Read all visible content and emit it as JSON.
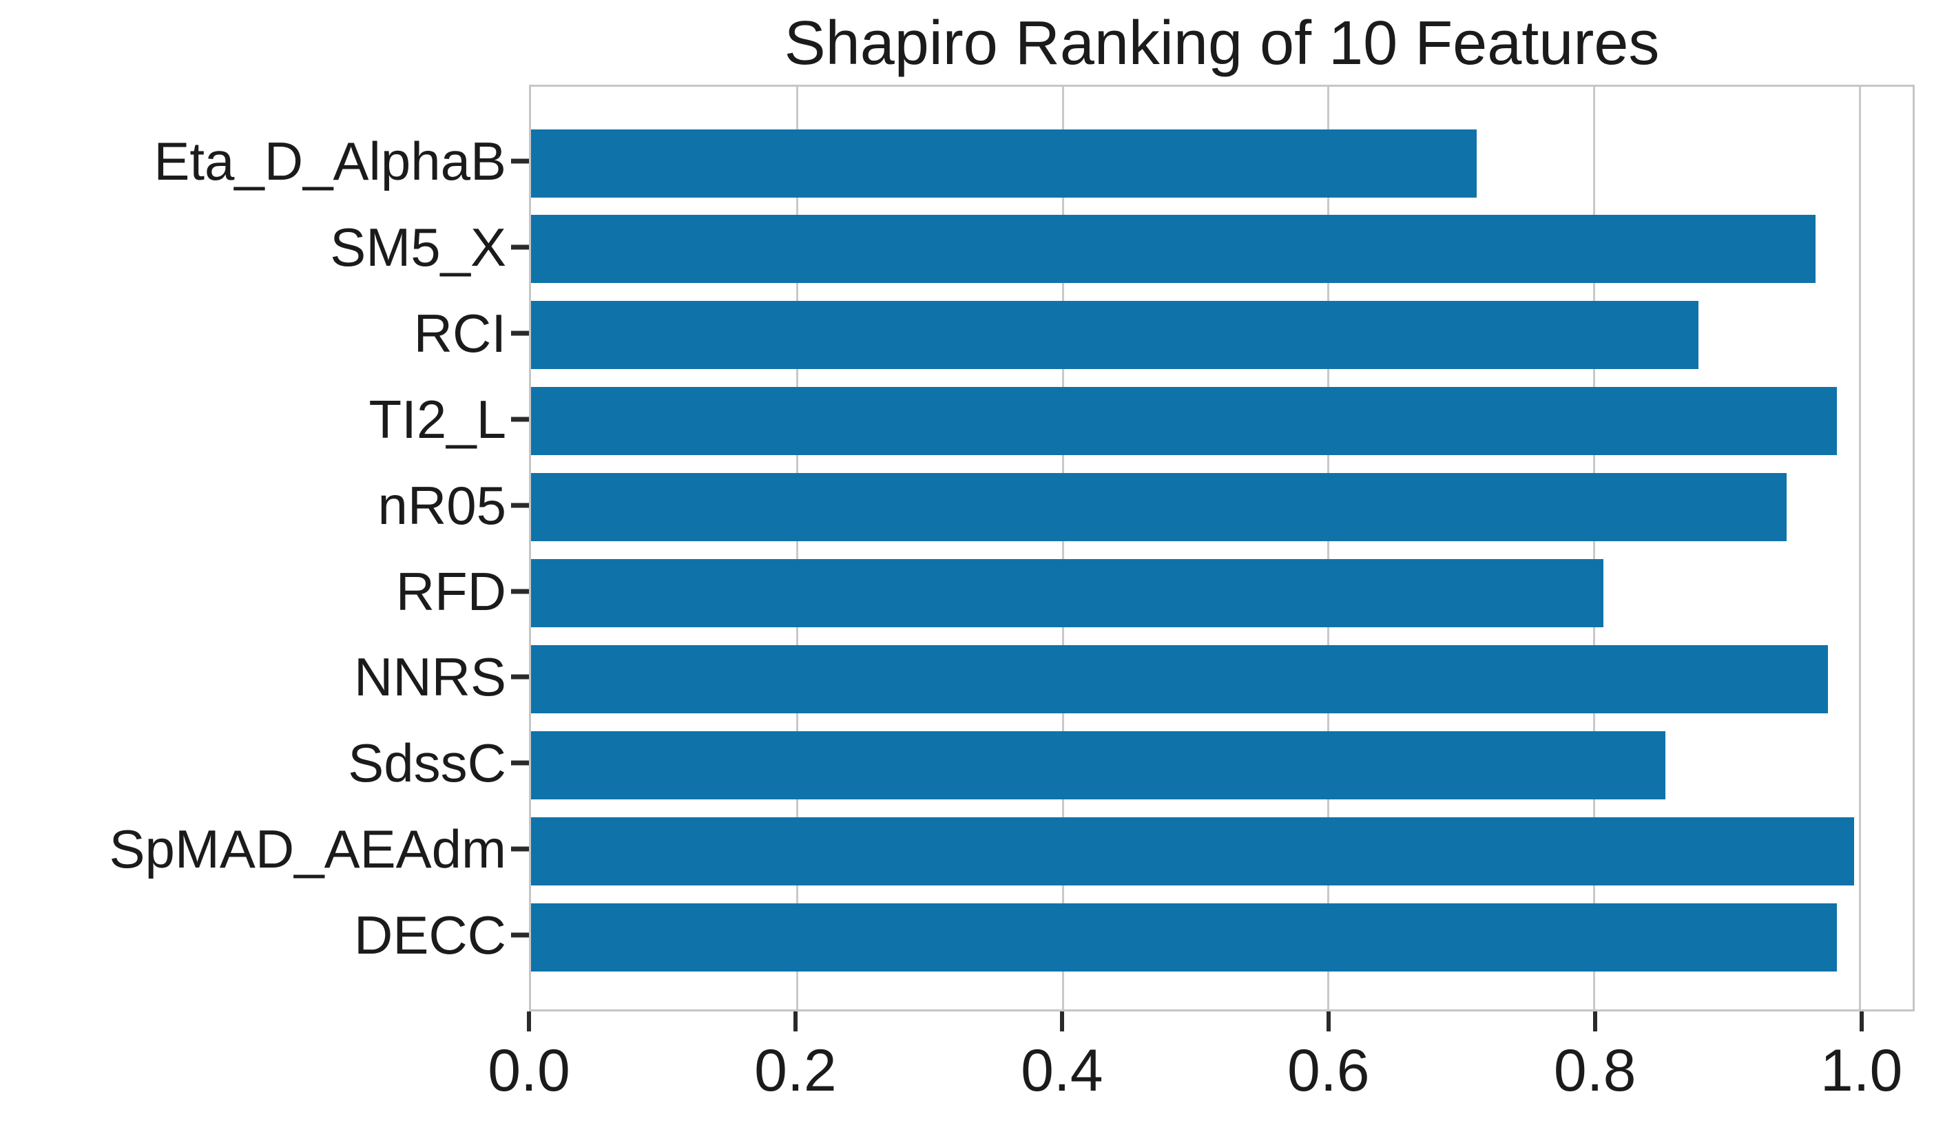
{
  "chart_data": {
    "type": "bar",
    "orientation": "horizontal",
    "title": "Shapiro Ranking of 10 Features",
    "categories": [
      "Eta_D_AlphaB",
      "SM5_X",
      "RCI",
      "TI2_L",
      "nR05",
      "RFD",
      "NNRS",
      "SdssC",
      "SpMAD_AEAdm",
      "DECC"
    ],
    "values": [
      0.712,
      0.967,
      0.879,
      0.983,
      0.945,
      0.807,
      0.976,
      0.854,
      0.996,
      0.983
    ],
    "xlabel": "",
    "ylabel": "",
    "xlim": [
      0,
      1.04
    ],
    "x_tick_labels": [
      "0.0",
      "0.2",
      "0.4",
      "0.6",
      "0.8",
      "1.0"
    ],
    "x_tick_values": [
      0.0,
      0.2,
      0.4,
      0.6,
      0.8,
      1.0
    ],
    "grid": "vertical-on",
    "legend": "none",
    "bar_color": "#0f73a9",
    "grid_color": "#c9c9c9",
    "spine_color": "#c6c6c6",
    "tick_color": "#2a2a2a",
    "text_color": "#1b1b1b"
  }
}
